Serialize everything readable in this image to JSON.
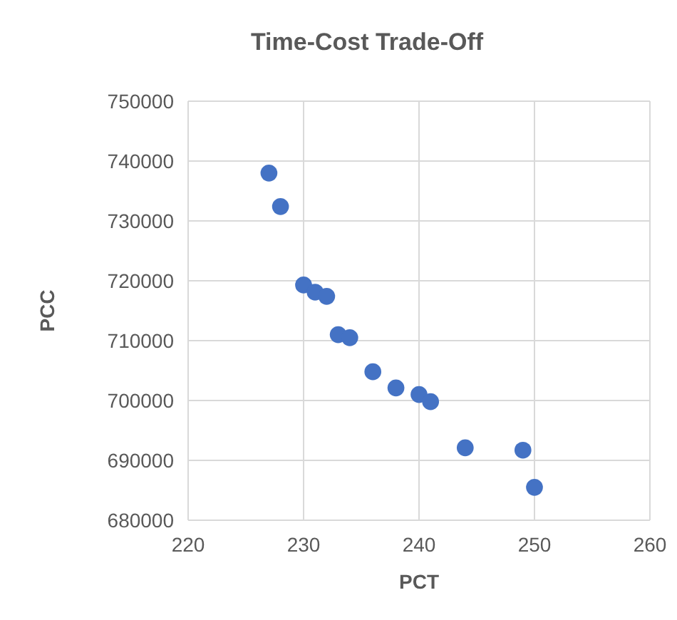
{
  "chart_data": {
    "type": "scatter",
    "title": "Time-Cost Trade-Off",
    "xlabel": "PCT",
    "ylabel": "PCC",
    "x": [
      227,
      228,
      230,
      231,
      232,
      233,
      234,
      236,
      238,
      240,
      241,
      244,
      249,
      250
    ],
    "series": [
      {
        "color": "#4472c4",
        "values": [
          738000,
          732400,
          719300,
          718100,
          717400,
          711000,
          710500,
          704800,
          702100,
          701000,
          699800,
          692100,
          691700,
          685500
        ]
      }
    ],
    "xlim": [
      220,
      260
    ],
    "xticks": [
      220,
      230,
      240,
      250,
      260
    ],
    "ylim": [
      680000,
      750000
    ],
    "yticks": [
      680000,
      690000,
      700000,
      710000,
      720000,
      730000,
      740000,
      750000
    ],
    "grid": true,
    "marker": "circle"
  }
}
